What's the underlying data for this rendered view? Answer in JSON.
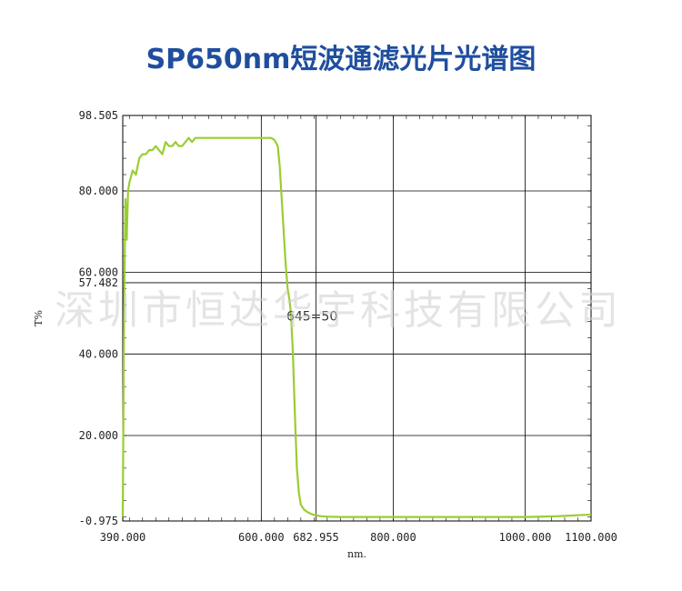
{
  "title": "SP650nm短波通滤光片光谱图",
  "watermark": "深圳市恒达华宇科技有限公司",
  "colors": {
    "curve": "#9acd32",
    "title": "#1f4e9e",
    "grid": "#000000"
  },
  "chart_data": {
    "type": "line",
    "title": "SP650nm短波通滤光片光谱图",
    "xlabel": "nm.",
    "ylabel": "T%",
    "xlim": [
      390,
      1100
    ],
    "ylim": [
      -0.975,
      98.505
    ],
    "grid": true,
    "x_ticks": [
      {
        "value": 390,
        "label": "390.000"
      },
      {
        "value": 600,
        "label": "600.000"
      },
      {
        "value": 682.955,
        "label": "682.955"
      },
      {
        "value": 800,
        "label": "800.000"
      },
      {
        "value": 1000,
        "label": "1000.000"
      },
      {
        "value": 1100,
        "label": "1100.000"
      }
    ],
    "y_ticks": [
      {
        "value": 98.505,
        "label": "98.505"
      },
      {
        "value": 80,
        "label": "80.000"
      },
      {
        "value": 60,
        "label": "60.000"
      },
      {
        "value": 57.482,
        "label": "57.482"
      },
      {
        "value": 40,
        "label": "40.000"
      },
      {
        "value": 20,
        "label": "20.000"
      },
      {
        "value": -0.975,
        "label": "-0.975"
      }
    ],
    "annotations": [
      {
        "text": "645=50",
        "x": 645,
        "y": 50
      }
    ],
    "series": [
      {
        "x": [
          390,
          392,
          394,
          396,
          398,
          400,
          405,
          410,
          415,
          420,
          425,
          430,
          435,
          440,
          445,
          450,
          455,
          460,
          465,
          470,
          475,
          480,
          485,
          490,
          495,
          500,
          510,
          520,
          530,
          540,
          550,
          560,
          570,
          580,
          590,
          600,
          610,
          615,
          620,
          625,
          628,
          631,
          634,
          637,
          640,
          643,
          645,
          648,
          651,
          654,
          657,
          660,
          665,
          670,
          675,
          680,
          690,
          700,
          720,
          750,
          800,
          850,
          900,
          950,
          1000,
          1050,
          1100
        ],
        "y": [
          0,
          50,
          78,
          68,
          80,
          82,
          85,
          84,
          88,
          89,
          89,
          90,
          90,
          91,
          90,
          89,
          92,
          91,
          91,
          92,
          91,
          91,
          92,
          93,
          92,
          93,
          93,
          93,
          93,
          93,
          93,
          93,
          93,
          93,
          93,
          93,
          93,
          93,
          92.5,
          91,
          86,
          78,
          70,
          62,
          56,
          53,
          50,
          40,
          25,
          12,
          6,
          3,
          1.8,
          1.2,
          0.8,
          0.5,
          0.2,
          0.1,
          0,
          0,
          0,
          0,
          0,
          0,
          0,
          0.2,
          0.6
        ]
      }
    ]
  }
}
